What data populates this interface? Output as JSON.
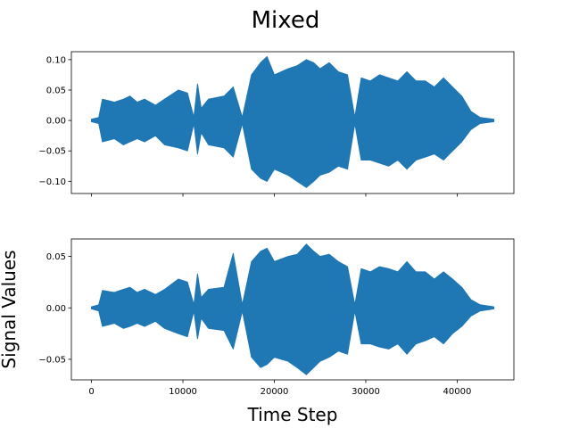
{
  "chart_data": {
    "type": "line",
    "suptitle": "Mixed",
    "xlabel": "Time Step",
    "ylabel": "Signal Values",
    "xlim": [
      -2200,
      46200
    ],
    "series_color": "#1f77b4",
    "x_ticks": [
      0,
      10000,
      20000,
      30000,
      40000
    ],
    "x_tick_labels": [
      "0",
      "10000",
      "20000",
      "30000",
      "40000"
    ],
    "panels": [
      {
        "ylim": [
          -0.12,
          0.113
        ],
        "y_ticks": [
          0.1,
          0.05,
          0.0,
          -0.05,
          -0.1
        ],
        "y_tick_labels": [
          "0.10",
          "0.05",
          "0.00",
          "−0.05",
          "−0.10"
        ],
        "x_tick_labels_visible": false,
        "envelope": {
          "time_step": [
            0,
            800,
            1200,
            2500,
            3500,
            4200,
            5000,
            5800,
            7000,
            8000,
            9500,
            10500,
            11200,
            11600,
            12000,
            12800,
            14500,
            15500,
            16500,
            17500,
            18500,
            19200,
            20000,
            21500,
            22500,
            23500,
            24300,
            25000,
            26000,
            27000,
            28000,
            28800,
            29500,
            30500,
            31500,
            32500,
            33500,
            34500,
            35500,
            36500,
            37500,
            38500,
            39500,
            40500,
            41500,
            42500,
            44000
          ],
          "upper": [
            0.002,
            0.005,
            0.035,
            0.03,
            0.035,
            0.04,
            0.03,
            0.035,
            0.025,
            0.035,
            0.05,
            0.045,
            0.005,
            0.06,
            0.02,
            0.035,
            0.04,
            0.055,
            0.005,
            0.075,
            0.095,
            0.105,
            0.075,
            0.085,
            0.09,
            0.1,
            0.095,
            0.085,
            0.095,
            0.08,
            0.075,
            0.005,
            0.07,
            0.065,
            0.075,
            0.07,
            0.065,
            0.08,
            0.065,
            0.065,
            0.055,
            0.07,
            0.055,
            0.04,
            0.015,
            0.005,
            0.002
          ],
          "lower": [
            -0.002,
            -0.005,
            -0.035,
            -0.03,
            -0.04,
            -0.035,
            -0.03,
            -0.035,
            -0.025,
            -0.04,
            -0.045,
            -0.05,
            -0.005,
            -0.055,
            -0.02,
            -0.04,
            -0.045,
            -0.06,
            -0.005,
            -0.08,
            -0.095,
            -0.1,
            -0.08,
            -0.09,
            -0.1,
            -0.11,
            -0.1,
            -0.09,
            -0.085,
            -0.075,
            -0.08,
            -0.005,
            -0.065,
            -0.065,
            -0.07,
            -0.075,
            -0.065,
            -0.08,
            -0.065,
            -0.06,
            -0.055,
            -0.065,
            -0.05,
            -0.035,
            -0.015,
            -0.005,
            -0.002
          ]
        }
      },
      {
        "ylim": [
          -0.07,
          0.067
        ],
        "y_ticks": [
          0.05,
          0.0,
          -0.05
        ],
        "y_tick_labels": [
          "0.05",
          "0.00",
          "−0.05"
        ],
        "x_tick_labels_visible": true,
        "envelope": {
          "time_step": [
            0,
            800,
            1200,
            2500,
            3500,
            4200,
            5000,
            5800,
            7000,
            8000,
            9500,
            10500,
            11200,
            11600,
            12000,
            12800,
            14500,
            15500,
            16500,
            17500,
            18500,
            19200,
            20000,
            21500,
            22500,
            23500,
            24300,
            25000,
            26000,
            27000,
            28000,
            28800,
            29500,
            30500,
            31500,
            32500,
            33500,
            34500,
            35500,
            36500,
            37500,
            38500,
            39500,
            40500,
            41500,
            42500,
            44000
          ],
          "upper": [
            0.001,
            0.003,
            0.017,
            0.015,
            0.018,
            0.02,
            0.015,
            0.018,
            0.013,
            0.018,
            0.028,
            0.025,
            0.003,
            0.033,
            0.01,
            0.018,
            0.02,
            0.053,
            0.003,
            0.045,
            0.055,
            0.058,
            0.045,
            0.05,
            0.052,
            0.062,
            0.055,
            0.05,
            0.052,
            0.045,
            0.04,
            0.003,
            0.038,
            0.035,
            0.04,
            0.038,
            0.035,
            0.045,
            0.035,
            0.035,
            0.028,
            0.035,
            0.028,
            0.02,
            0.008,
            0.003,
            0.001
          ],
          "lower": [
            -0.001,
            -0.003,
            -0.018,
            -0.015,
            -0.02,
            -0.018,
            -0.015,
            -0.018,
            -0.013,
            -0.02,
            -0.025,
            -0.028,
            -0.003,
            -0.03,
            -0.01,
            -0.02,
            -0.022,
            -0.04,
            -0.003,
            -0.048,
            -0.058,
            -0.055,
            -0.048,
            -0.052,
            -0.058,
            -0.065,
            -0.058,
            -0.052,
            -0.048,
            -0.042,
            -0.045,
            -0.003,
            -0.035,
            -0.035,
            -0.038,
            -0.04,
            -0.035,
            -0.045,
            -0.035,
            -0.032,
            -0.028,
            -0.035,
            -0.025,
            -0.018,
            -0.008,
            -0.003,
            -0.001
          ]
        }
      }
    ]
  }
}
